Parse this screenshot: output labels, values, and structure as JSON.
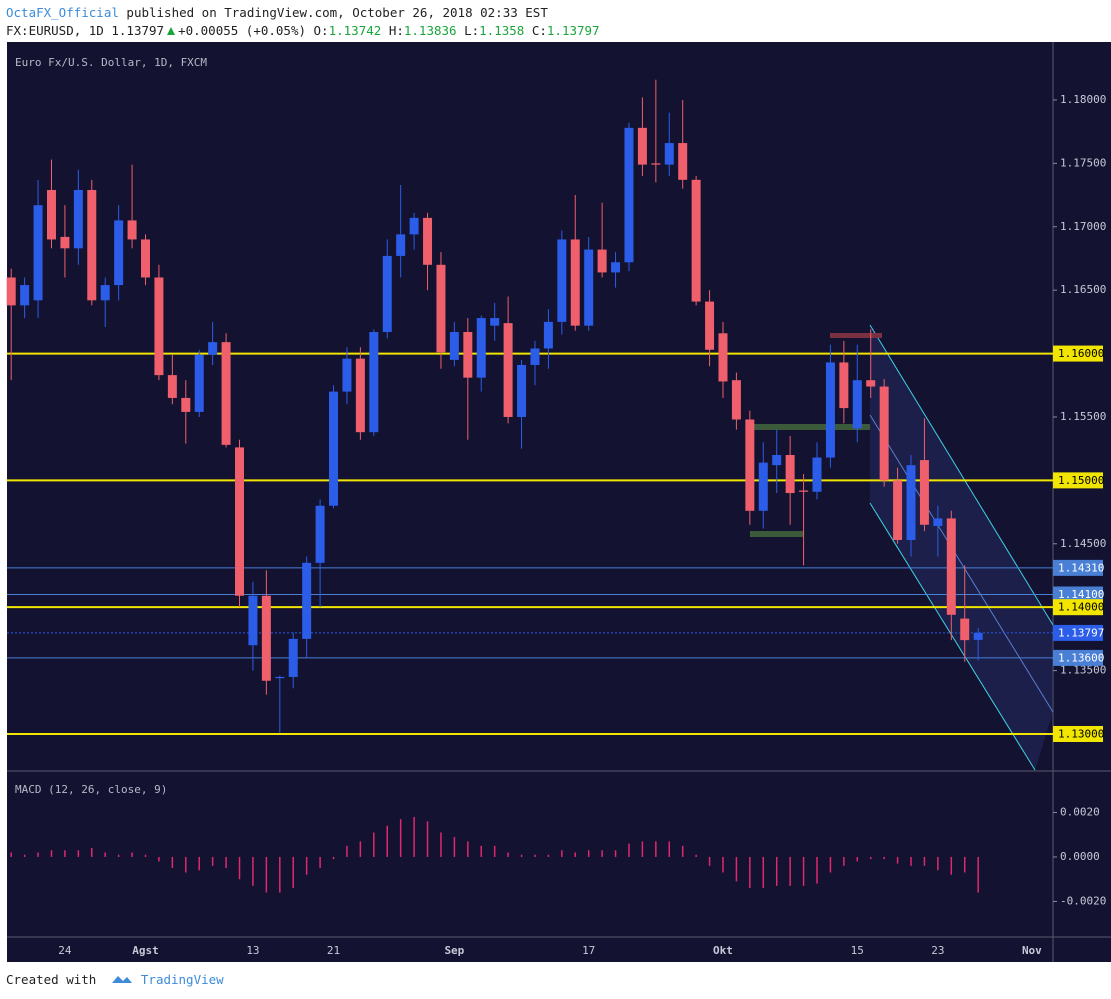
{
  "header": {
    "publisher": "OctaFX_Official",
    "published": "published on TradingView.com, October 26, 2018 02:33 EST",
    "symbol": "FX:EURUSD, 1D",
    "change": "+0.00055 (+0.05%)",
    "ohlc_labels": [
      "O:",
      "H:",
      "L:",
      "C:"
    ]
  },
  "footer": {
    "created": "Created with",
    "brand": "TradingView"
  },
  "chart_data": [
    {
      "type": "candlestick",
      "title": "Euro Fx/U.S. Dollar, 1D, FXCM",
      "up_color": "#2b5de8",
      "down_color": "#ef5f6c",
      "categories": [
        null,
        null,
        null,
        null,
        "24",
        null,
        null,
        null,
        null,
        null,
        "Agst",
        null,
        null,
        null,
        null,
        null,
        null,
        null,
        "13",
        null,
        null,
        null,
        null,
        null,
        "21",
        null,
        null,
        null,
        null,
        null,
        null,
        null,
        null,
        "Sep",
        null,
        null,
        null,
        null,
        null,
        null,
        null,
        null,
        null,
        "17",
        null,
        null,
        null,
        null,
        null,
        null,
        null,
        null,
        null,
        "Okt",
        null,
        null,
        null,
        null,
        null,
        null,
        null,
        null,
        null,
        "15",
        null,
        null,
        null,
        null,
        null,
        "23",
        null,
        null,
        null,
        null,
        null,
        null,
        "Nov"
      ],
      "open": [
        1.166,
        1.1638,
        1.1642,
        1.1729,
        1.1692,
        1.1683,
        1.1729,
        1.1642,
        1.1654,
        1.1705,
        1.169,
        1.166,
        1.1583,
        1.1565,
        1.1554,
        1.1599,
        1.1609,
        1.1526,
        1.137,
        1.1409,
        1.1344,
        1.1345,
        1.1375,
        1.1435,
        1.148,
        1.157,
        1.1596,
        1.1538,
        1.1617,
        1.1677,
        1.1694,
        1.1707,
        1.167,
        1.1595,
        1.1617,
        1.1581,
        1.1622,
        1.1624,
        1.155,
        1.1591,
        1.1604,
        1.1625,
        1.169,
        1.1622,
        1.1682,
        1.1664,
        1.1672,
        1.1778,
        1.175,
        1.1749,
        1.1766,
        1.1737,
        1.1641,
        1.1616,
        1.1579,
        1.1548,
        1.1476,
        1.1512,
        1.152,
        1.1492,
        1.1491,
        1.1518,
        1.1593,
        1.1541,
        1.1579,
        1.1574,
        1.15,
        1.1453,
        1.1516,
        1.1464,
        1.147,
        1.1391,
        1.13742,
        null,
        null,
        null,
        null
      ],
      "high": [
        1.1667,
        1.166,
        1.1737,
        1.1753,
        1.1717,
        1.1745,
        1.1737,
        1.166,
        1.1717,
        1.1749,
        1.1694,
        1.167,
        1.1599,
        1.1579,
        1.1603,
        1.1625,
        1.1616,
        1.1532,
        1.142,
        1.1429,
        1.1346,
        1.138,
        1.144,
        1.1485,
        1.1575,
        1.1605,
        1.1605,
        1.1619,
        1.169,
        1.1733,
        1.1711,
        1.1711,
        1.168,
        1.1625,
        1.1628,
        1.163,
        1.164,
        1.1645,
        1.1595,
        1.161,
        1.1635,
        1.1697,
        1.1725,
        1.1692,
        1.1719,
        1.168,
        1.1782,
        1.1802,
        1.1816,
        1.179,
        1.18,
        1.174,
        1.165,
        1.1625,
        1.1585,
        1.1555,
        1.153,
        1.154,
        1.1535,
        1.1505,
        1.153,
        1.1607,
        1.161,
        1.1607,
        1.1619,
        1.158,
        1.151,
        1.152,
        1.1549,
        1.148,
        1.1476,
        1.1433,
        1.13836,
        null,
        null,
        null,
        null
      ],
      "low": [
        1.1579,
        1.1628,
        1.1628,
        1.1683,
        1.166,
        1.167,
        1.1638,
        1.1621,
        1.1642,
        1.1683,
        1.1654,
        1.1579,
        1.156,
        1.1529,
        1.155,
        1.1591,
        1.1526,
        1.14,
        1.135,
        1.1331,
        1.1301,
        1.1336,
        1.136,
        1.14,
        1.1478,
        1.156,
        1.1532,
        1.1535,
        1.1612,
        1.166,
        1.1682,
        1.165,
        1.1588,
        1.159,
        1.1532,
        1.157,
        1.161,
        1.1545,
        1.1525,
        1.1575,
        1.1588,
        1.1615,
        1.1618,
        1.1618,
        1.166,
        1.1652,
        1.1665,
        1.174,
        1.1735,
        1.174,
        1.173,
        1.1638,
        1.159,
        1.1565,
        1.154,
        1.1465,
        1.1462,
        1.149,
        1.1465,
        1.1433,
        1.1485,
        1.151,
        1.1545,
        1.153,
        1.1565,
        1.1495,
        1.145,
        1.144,
        1.146,
        1.144,
        1.1374,
        1.1357,
        1.1358,
        null,
        null,
        null,
        null
      ],
      "close": [
        1.1638,
        1.1654,
        1.1717,
        1.169,
        1.1683,
        1.1729,
        1.1642,
        1.1654,
        1.1705,
        1.169,
        1.166,
        1.1583,
        1.1565,
        1.1554,
        1.1599,
        1.1609,
        1.1528,
        1.1409,
        1.1409,
        1.1342,
        1.1345,
        1.1375,
        1.1435,
        1.148,
        1.157,
        1.1596,
        1.1538,
        1.1617,
        1.1677,
        1.1694,
        1.1707,
        1.167,
        1.1601,
        1.1617,
        1.1581,
        1.1628,
        1.1628,
        1.155,
        1.1591,
        1.1604,
        1.1625,
        1.169,
        1.1622,
        1.1682,
        1.1664,
        1.1672,
        1.1778,
        1.1749,
        1.1749,
        1.1766,
        1.1737,
        1.1641,
        1.1603,
        1.1578,
        1.1548,
        1.1476,
        1.1514,
        1.152,
        1.149,
        1.1491,
        1.1518,
        1.1593,
        1.1557,
        1.1579,
        1.1574,
        1.15,
        1.1453,
        1.1512,
        1.1465,
        1.147,
        1.1394,
        1.1374,
        1.13797,
        null,
        null,
        null,
        null
      ],
      "ylim": [
        1.12716,
        1.18457
      ],
      "yticks": [
        {
          "value": 1.18,
          "label": "1.18000"
        },
        {
          "value": 1.175,
          "label": "1.17500"
        },
        {
          "value": 1.17,
          "label": "1.17000"
        },
        {
          "value": 1.165,
          "label": "1.16500"
        },
        {
          "value": 1.155,
          "label": "1.15500"
        },
        {
          "value": 1.145,
          "label": "1.14500"
        },
        {
          "value": 1.135,
          "label": "1.13500"
        }
      ],
      "hlines": [
        {
          "value": 1.16,
          "label": "1.16000",
          "color": "#f2e600",
          "style": "solid"
        },
        {
          "value": 1.15,
          "label": "1.15000",
          "color": "#f2e600",
          "style": "solid"
        },
        {
          "value": 1.1431,
          "label": "1.14310",
          "color": "#4a7fd6",
          "style": "solid"
        },
        {
          "value": 1.141,
          "label": "1.14100",
          "color": "#4a7fd6",
          "style": "solid"
        },
        {
          "value": 1.14,
          "label": "1.14000",
          "color": "#f2e600",
          "style": "solid"
        },
        {
          "value": 1.13797,
          "label": "1.13797",
          "color": "#2b5de8",
          "style": "dotted"
        },
        {
          "value": 1.136,
          "label": "1.13600",
          "color": "#4a7fd6",
          "style": "solid"
        },
        {
          "value": 1.13,
          "label": "1.13000",
          "color": "#f2e600",
          "style": "solid"
        }
      ]
    },
    {
      "type": "bar",
      "title": "MACD (12, 26, close, 9)",
      "color": "#e0286f",
      "values": [
        0.0002,
        0.0001,
        0.0002,
        0.0003,
        0.0003,
        0.0003,
        0.0004,
        0.0002,
        0.0001,
        0.0002,
        0.0001,
        -0.0002,
        -0.0005,
        -0.0007,
        -0.0006,
        -0.0004,
        -0.0005,
        -0.001,
        -0.0013,
        -0.0016,
        -0.0016,
        -0.0014,
        -0.0008,
        -0.0005,
        -0.0001,
        0.0005,
        0.0007,
        0.0011,
        0.0014,
        0.0017,
        0.0018,
        0.0016,
        0.0011,
        0.0009,
        0.0007,
        0.0005,
        0.0005,
        0.0002,
        0.0001,
        0.0001,
        0.0001,
        0.0003,
        0.0002,
        0.0003,
        0.0003,
        0.0003,
        0.0006,
        0.0007,
        0.0007,
        0.0007,
        0.0005,
        0.0001,
        -0.0004,
        -0.0007,
        -0.0011,
        -0.0014,
        -0.0014,
        -0.0013,
        -0.0013,
        -0.0013,
        -0.0012,
        -0.0007,
        -0.0004,
        -0.0002,
        -0.0001,
        -0.0001,
        -0.0003,
        -0.0004,
        -0.0004,
        -0.0006,
        -0.0008,
        -0.0007,
        -0.0016,
        null,
        null,
        null,
        null
      ],
      "ylim": [
        -0.0036,
        0.00382
      ],
      "yticks": [
        {
          "value": 0.002,
          "label": "0.0020"
        },
        {
          "value": 0,
          "label": "0.0000"
        },
        {
          "value": -0.002,
          "label": "-0.0020"
        }
      ]
    }
  ]
}
